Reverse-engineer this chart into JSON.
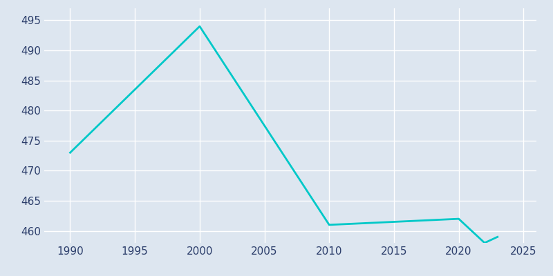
{
  "years": [
    1990,
    2000,
    2010,
    2015,
    2020,
    2022,
    2023
  ],
  "population": [
    473,
    494,
    461,
    461.5,
    462,
    458,
    459
  ],
  "line_color": "#00C8C8",
  "background_color": "#dde6f0",
  "grid_color": "#ffffff",
  "text_color": "#2c3e6b",
  "xlim": [
    1988,
    2026
  ],
  "ylim": [
    458,
    497
  ],
  "xticks": [
    1990,
    1995,
    2000,
    2005,
    2010,
    2015,
    2020,
    2025
  ],
  "yticks": [
    460,
    465,
    470,
    475,
    480,
    485,
    490,
    495
  ],
  "linewidth": 2.0,
  "tick_fontsize": 11
}
